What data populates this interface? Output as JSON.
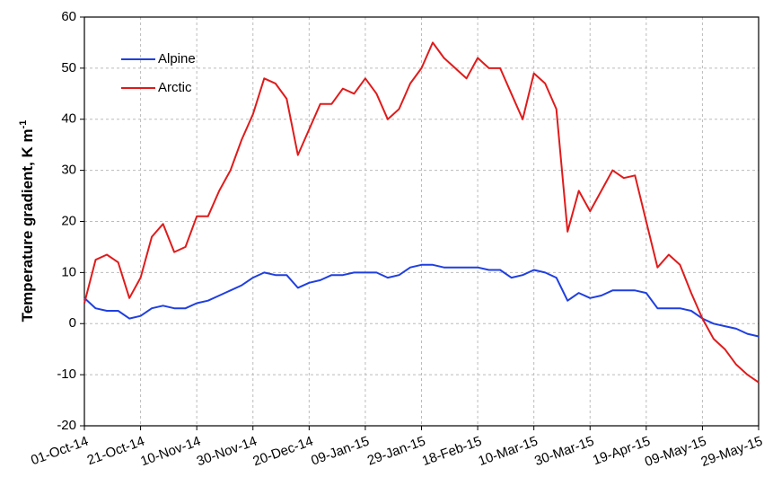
{
  "chart_data": {
    "type": "line",
    "ylabel": {
      "text": "Temperature  gradient,  K m",
      "superscript": "-1"
    },
    "x": [
      "01-Oct-14",
      "05-Oct-14",
      "09-Oct-14",
      "13-Oct-14",
      "17-Oct-14",
      "21-Oct-14",
      "25-Oct-14",
      "29-Oct-14",
      "02-Nov-14",
      "06-Nov-14",
      "10-Nov-14",
      "14-Nov-14",
      "18-Nov-14",
      "22-Nov-14",
      "26-Nov-14",
      "30-Nov-14",
      "04-Dec-14",
      "08-Dec-14",
      "12-Dec-14",
      "16-Dec-14",
      "20-Dec-14",
      "24-Dec-14",
      "28-Dec-14",
      "01-Jan-15",
      "05-Jan-15",
      "09-Jan-15",
      "13-Jan-15",
      "17-Jan-15",
      "21-Jan-15",
      "25-Jan-15",
      "29-Jan-15",
      "02-Feb-15",
      "06-Feb-15",
      "10-Feb-15",
      "14-Feb-15",
      "18-Feb-15",
      "22-Feb-15",
      "26-Feb-15",
      "02-Mar-15",
      "06-Mar-15",
      "10-Mar-15",
      "14-Mar-15",
      "18-Mar-15",
      "22-Mar-15",
      "26-Mar-15",
      "30-Mar-15",
      "03-Apr-15",
      "07-Apr-15",
      "11-Apr-15",
      "15-Apr-15",
      "19-Apr-15",
      "23-Apr-15",
      "27-Apr-15",
      "01-May-15",
      "05-May-15",
      "09-May-15",
      "13-May-15",
      "17-May-15",
      "21-May-15",
      "25-May-15",
      "29-May-15"
    ],
    "xticks": [
      "01-Oct-14",
      "21-Oct-14",
      "10-Nov-14",
      "30-Nov-14",
      "20-Dec-14",
      "09-Jan-15",
      "29-Jan-15",
      "18-Feb-15",
      "10-Mar-15",
      "30-Mar-15",
      "19-Apr-15",
      "09-May-15",
      "29-May-15"
    ],
    "ylim": [
      -20,
      60
    ],
    "yticks": [
      -20,
      -10,
      0,
      10,
      20,
      30,
      40,
      50,
      60
    ],
    "grid": true,
    "legend": "upper left",
    "series": [
      {
        "name": "Alpine",
        "color": "#1f3fe0",
        "values": [
          5,
          3,
          2.5,
          2.5,
          1,
          1.5,
          3,
          3.5,
          3,
          3,
          4,
          4.5,
          5.5,
          6.5,
          7.5,
          9,
          10,
          9.5,
          9.5,
          7,
          8,
          8.5,
          9.5,
          9.5,
          10,
          10,
          10,
          9,
          9.5,
          11,
          11.5,
          11.5,
          11,
          11,
          11,
          11,
          10.5,
          10.5,
          9,
          9.5,
          10.5,
          10,
          9,
          4.5,
          6,
          5,
          5.5,
          6.5,
          6.5,
          6.5,
          6,
          3,
          3,
          3,
          2.5,
          1,
          0,
          -0.5,
          -1,
          -2,
          -2.5
        ]
      },
      {
        "name": "Arctic",
        "color": "#e01b1b",
        "values": [
          4,
          12.5,
          13.5,
          12,
          5,
          9,
          17,
          19.5,
          14,
          15,
          21,
          21,
          26,
          30,
          36,
          41,
          48,
          47,
          44,
          33,
          38,
          43,
          43,
          46,
          45,
          48,
          45,
          40,
          42,
          47,
          50,
          55,
          52,
          50,
          48,
          52,
          50,
          50,
          45,
          40,
          49,
          47,
          42,
          18,
          26,
          22,
          26,
          30,
          28.5,
          29,
          20,
          11,
          13.5,
          11.5,
          6,
          1,
          -3,
          -5,
          -8,
          -10,
          -11.5
        ]
      }
    ]
  }
}
